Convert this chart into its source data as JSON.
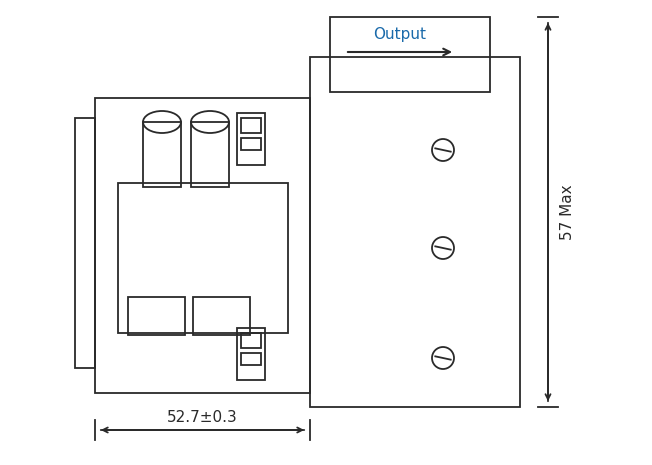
{
  "bg_color": "#ffffff",
  "line_color": "#2a2a2a",
  "output_text_color": "#1a6aaa",
  "fig_width": 6.52,
  "fig_height": 4.65,
  "output_label": "Output",
  "dim_h_label": "52.7±0.3",
  "dim_v_label": "57 Max",
  "dpi": 100
}
